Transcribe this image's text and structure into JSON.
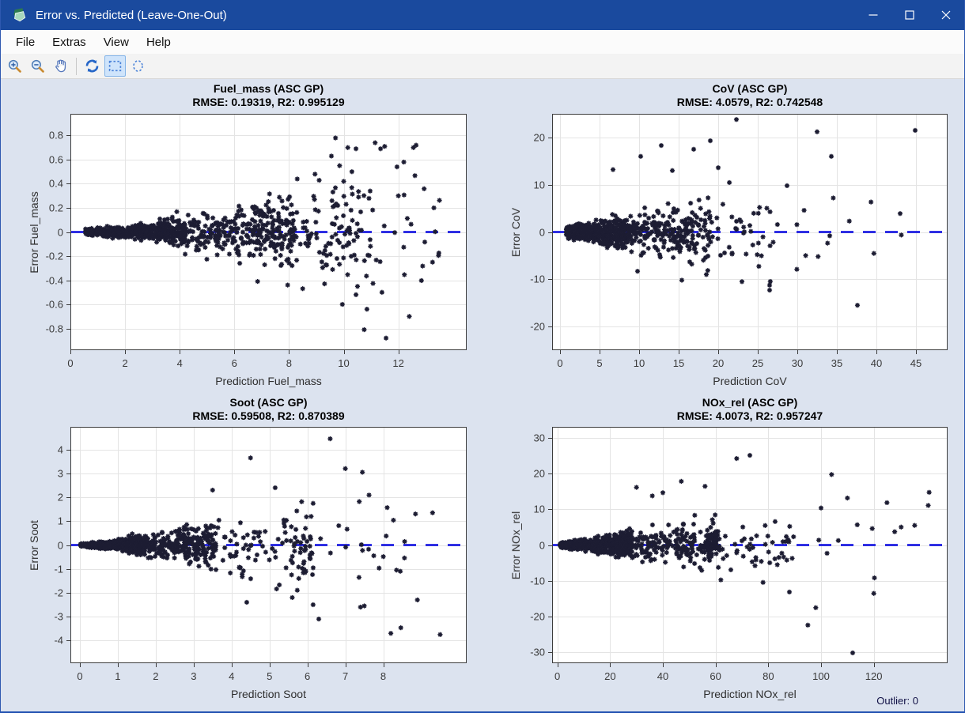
{
  "window": {
    "title": "Error vs. Predicted (Leave-One-Out)",
    "icon": "app-logo-green-shields",
    "controls": [
      "minimize",
      "maximize",
      "close"
    ]
  },
  "menu": {
    "items": [
      "File",
      "Extras",
      "View",
      "Help"
    ]
  },
  "toolbar": {
    "buttons": [
      {
        "icon": "zoom-in",
        "active": false
      },
      {
        "icon": "zoom-out",
        "active": false
      },
      {
        "icon": "pan-hand",
        "active": false
      },
      {
        "icon": "refresh",
        "active": false
      },
      {
        "icon": "rectangle-select",
        "active": true
      },
      {
        "icon": "ellipse-select",
        "active": false
      }
    ]
  },
  "status": {
    "outlier_label": "Outlier: 0"
  },
  "colors": {
    "titlebar": "#1a4a9e",
    "content_bg": "#dce3ef",
    "plot_bg": "#ffffff",
    "grid": "#e4e4e4",
    "axis": "#3c3c3c",
    "marker": "#1d1d33",
    "zero_line": "#0a0ae0"
  },
  "chart_data": [
    {
      "type": "scatter",
      "title": "Fuel_mass (ASC GP)",
      "subtitle": "RMSE: 0.19319, R2: 0.995129",
      "rmse": 0.19319,
      "r2": 0.995129,
      "xlabel": "Prediction Fuel_mass",
      "ylabel": "Error Fuel_mass",
      "xlim": [
        0,
        14.5
      ],
      "ylim": [
        -0.98,
        0.98
      ],
      "xticks": [
        0,
        2,
        4,
        6,
        8,
        10,
        12
      ],
      "yticks": [
        -0.8,
        -0.6,
        -0.4,
        -0.2,
        0,
        0.2,
        0.4,
        0.6,
        0.8
      ],
      "grid": true,
      "zero_line": {
        "y": 0,
        "style": "dashed",
        "color": "#0a0ae0"
      },
      "marker": {
        "shape": "asterisk",
        "color": "#1d1d33"
      },
      "generator": {
        "seed": 101,
        "groups": [
          {
            "n": 430,
            "x": [
              0.55,
              4.2
            ],
            "skew": 1.25,
            "a": 0.028,
            "b": 0.02
          },
          {
            "n": 330,
            "x": [
              3.2,
              8.2
            ],
            "skew": 1.0,
            "a": 0.05,
            "b": 0
          },
          {
            "n": 130,
            "x": [
              6.5,
              11.0
            ],
            "skew": 1.0,
            "a": 0.055,
            "b": 0
          },
          {
            "n": 40,
            "x": [
              9.0,
              13.6
            ],
            "skew": 1.0,
            "a": 0.06,
            "b": 0
          }
        ]
      },
      "outlier_points": [
        [
          9.7,
          0.78
        ],
        [
          10.15,
          0.7
        ],
        [
          11.15,
          0.74
        ],
        [
          11.35,
          0.69
        ],
        [
          11.5,
          0.71
        ],
        [
          10.45,
          0.69
        ],
        [
          9.55,
          0.63
        ],
        [
          9.85,
          0.55
        ],
        [
          10.3,
          0.5
        ],
        [
          8.95,
          0.48
        ],
        [
          12.2,
          0.58
        ],
        [
          11.95,
          0.54
        ],
        [
          13.3,
          0.2
        ],
        [
          12.0,
          0.3
        ],
        [
          12.55,
          0.7
        ],
        [
          12.65,
          0.72
        ],
        [
          10.0,
          0.42
        ],
        [
          8.3,
          0.44
        ],
        [
          13.25,
          -0.25
        ],
        [
          10.85,
          -0.64
        ],
        [
          10.75,
          -0.81
        ],
        [
          11.55,
          -0.88
        ],
        [
          12.4,
          -0.7
        ],
        [
          9.95,
          -0.6
        ],
        [
          11.4,
          -0.5
        ],
        [
          10.45,
          -0.52
        ],
        [
          8.5,
          -0.47
        ],
        [
          7.95,
          -0.44
        ],
        [
          6.85,
          -0.41
        ],
        [
          9.3,
          -0.43
        ]
      ]
    },
    {
      "type": "scatter",
      "title": "CoV (ASC GP)",
      "subtitle": "RMSE: 4.0579, R2: 0.742548",
      "rmse": 4.0579,
      "r2": 0.742548,
      "xlabel": "Prediction CoV",
      "ylabel": "Error CoV",
      "xlim": [
        -1,
        49
      ],
      "ylim": [
        -25,
        25
      ],
      "xticks": [
        0,
        5,
        10,
        15,
        20,
        25,
        30,
        35,
        40,
        45
      ],
      "yticks": [
        -20,
        -10,
        0,
        10,
        20
      ],
      "grid": true,
      "zero_line": {
        "y": 0,
        "style": "dashed",
        "color": "#0a0ae0"
      },
      "marker": {
        "shape": "asterisk",
        "color": "#1d1d33"
      },
      "generator": {
        "seed": 202,
        "groups": [
          {
            "n": 520,
            "x": [
              0.8,
              8.5
            ],
            "skew": 1.3,
            "a": 0.5,
            "b": 1
          },
          {
            "n": 240,
            "x": [
              7,
              19
            ],
            "skew": 1.1,
            "a": 0.55,
            "b": 0
          },
          {
            "n": 70,
            "x": [
              15,
              27
            ],
            "skew": 1.0,
            "a": 0.6,
            "b": 0
          },
          {
            "n": 12,
            "x": [
              27,
              46
            ],
            "skew": 1.0,
            "a": 0.35,
            "b": 0
          }
        ]
      },
      "outlier_points": [
        [
          22.3,
          23.8
        ],
        [
          32.5,
          21.2
        ],
        [
          44.9,
          21.5
        ],
        [
          34.3,
          16.0
        ],
        [
          28.7,
          9.8
        ],
        [
          37.6,
          -15.5
        ],
        [
          43.0,
          3.9
        ],
        [
          34.1,
          -0.8
        ],
        [
          19.0,
          19.3
        ],
        [
          12.8,
          18.3
        ],
        [
          16.9,
          17.5
        ],
        [
          10.2,
          16.0
        ],
        [
          6.7,
          13.2
        ],
        [
          14.2,
          13.0
        ],
        [
          20.0,
          13.6
        ],
        [
          26.5,
          -12.3
        ],
        [
          23.0,
          -10.5
        ],
        [
          18.5,
          -9.0
        ],
        [
          15.4,
          -10.2
        ],
        [
          9.8,
          -8.3
        ]
      ]
    },
    {
      "type": "scatter",
      "title": "Soot (ASC GP)",
      "subtitle": "RMSE: 0.59508, R2: 0.870389",
      "rmse": 0.59508,
      "r2": 0.870389,
      "xlabel": "Prediction Soot",
      "ylabel": "Error Soot",
      "xlim": [
        -0.25,
        10.2
      ],
      "ylim": [
        -4.95,
        4.95
      ],
      "xticks": [
        0,
        1,
        2,
        3,
        4,
        5,
        6,
        7,
        8
      ],
      "yticks": [
        -4,
        -3,
        -2,
        -1,
        0,
        1,
        2,
        3,
        4
      ],
      "grid": true,
      "zero_line": {
        "y": 0,
        "style": "dashed",
        "color": "#0a0ae0"
      },
      "marker": {
        "shape": "asterisk",
        "color": "#1d1d33"
      },
      "generator": {
        "seed": 303,
        "groups": [
          {
            "n": 520,
            "x": [
              0.02,
              1.6
            ],
            "skew": 1.3,
            "a": 0.25,
            "b": 0.06
          },
          {
            "n": 280,
            "x": [
              1.2,
              3.6
            ],
            "skew": 1.1,
            "a": 0.38,
            "b": 0
          },
          {
            "n": 120,
            "x": [
              3.0,
              6.2
            ],
            "skew": 1.0,
            "a": 0.42,
            "b": 0
          },
          {
            "n": 26,
            "x": [
              5.5,
              8.6
            ],
            "skew": 1.0,
            "a": 0.45,
            "b": 0
          }
        ]
      },
      "outlier_points": [
        [
          6.6,
          4.45
        ],
        [
          4.5,
          3.65
        ],
        [
          7.0,
          3.2
        ],
        [
          7.45,
          3.05
        ],
        [
          5.15,
          2.4
        ],
        [
          3.5,
          2.3
        ],
        [
          9.3,
          1.35
        ],
        [
          8.85,
          1.3
        ],
        [
          8.35,
          -1.05
        ],
        [
          8.45,
          -1.1
        ],
        [
          7.75,
          -0.45
        ],
        [
          8.2,
          -3.7
        ],
        [
          9.5,
          -3.75
        ],
        [
          7.5,
          -2.55
        ],
        [
          6.3,
          -3.1
        ],
        [
          5.6,
          -2.2
        ],
        [
          4.4,
          -2.4
        ],
        [
          6.15,
          -2.5
        ],
        [
          8.9,
          -2.3
        ],
        [
          7.4,
          -2.6
        ]
      ]
    },
    {
      "type": "scatter",
      "title": "NOx_rel (ASC GP)",
      "subtitle": "RMSE: 4.0073, R2: 0.957247",
      "rmse": 4.0073,
      "r2": 0.957247,
      "xlabel": "Prediction NOx_rel",
      "ylabel": "Error NOx_rel",
      "xlim": [
        -2,
        148
      ],
      "ylim": [
        -33.2,
        33.2
      ],
      "xticks": [
        0,
        20,
        40,
        60,
        80,
        100,
        120
      ],
      "yticks": [
        -30,
        -20,
        -10,
        0,
        10,
        20,
        30
      ],
      "grid": true,
      "zero_line": {
        "y": 0,
        "style": "dashed",
        "color": "#0a0ae0"
      },
      "marker": {
        "shape": "asterisk",
        "color": "#1d1d33"
      },
      "generator": {
        "seed": 404,
        "groups": [
          {
            "n": 520,
            "x": [
              1,
              28
            ],
            "skew": 1.3,
            "a": 0.17,
            "b": 0.8
          },
          {
            "n": 260,
            "x": [
              22,
              62
            ],
            "skew": 1.1,
            "a": 0.18,
            "b": 0
          },
          {
            "n": 60,
            "x": [
              55,
              90
            ],
            "skew": 1.0,
            "a": 0.16,
            "b": 0
          },
          {
            "n": 10,
            "x": [
              90,
              141
            ],
            "skew": 1.0,
            "a": 0.12,
            "b": 0
          }
        ]
      },
      "outlier_points": [
        [
          68,
          24.3
        ],
        [
          73,
          25.2
        ],
        [
          104,
          19.8
        ],
        [
          125,
          11.9
        ],
        [
          110,
          13.2
        ],
        [
          100,
          10.4
        ],
        [
          141,
          14.8
        ],
        [
          120,
          -13.6
        ],
        [
          95,
          -22.5
        ],
        [
          98,
          -17.6
        ],
        [
          112,
          -30.3
        ],
        [
          88,
          -13.2
        ],
        [
          78,
          -10.5
        ],
        [
          62,
          -9.8
        ],
        [
          56,
          16.5
        ],
        [
          47,
          17.9
        ],
        [
          40,
          14.7
        ],
        [
          36,
          13.8
        ],
        [
          30,
          16.2
        ]
      ]
    }
  ]
}
